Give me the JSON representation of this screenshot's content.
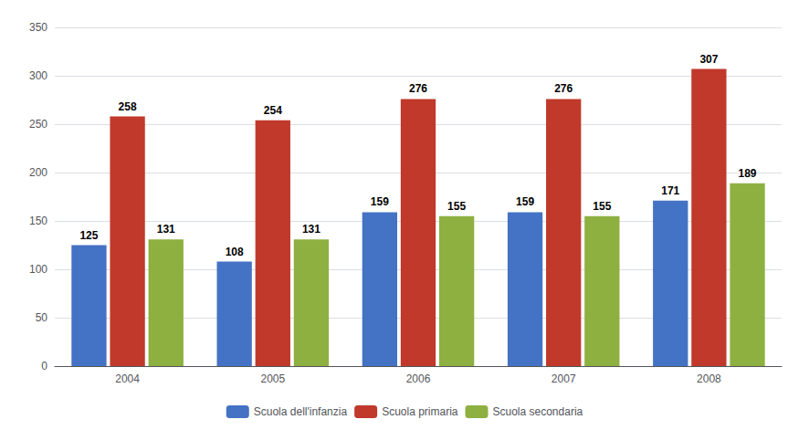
{
  "chart_data": {
    "type": "bar",
    "categories": [
      "2004",
      "2005",
      "2006",
      "2007",
      "2008"
    ],
    "series": [
      {
        "name": "Scuola dell'infanzia",
        "color": "#4472C4",
        "values": [
          125,
          108,
          159,
          159,
          171
        ]
      },
      {
        "name": "Scuola primaria",
        "color": "#C0392B",
        "values": [
          258,
          254,
          276,
          276,
          307
        ]
      },
      {
        "name": "Scuola secondaria",
        "color": "#8DB040",
        "values": [
          131,
          131,
          155,
          155,
          189
        ]
      }
    ],
    "ylim": [
      0,
      350
    ],
    "yticks": [
      0,
      50,
      100,
      150,
      200,
      250,
      300,
      350
    ],
    "grid": true,
    "legend": "bottom",
    "data_labels": true
  }
}
